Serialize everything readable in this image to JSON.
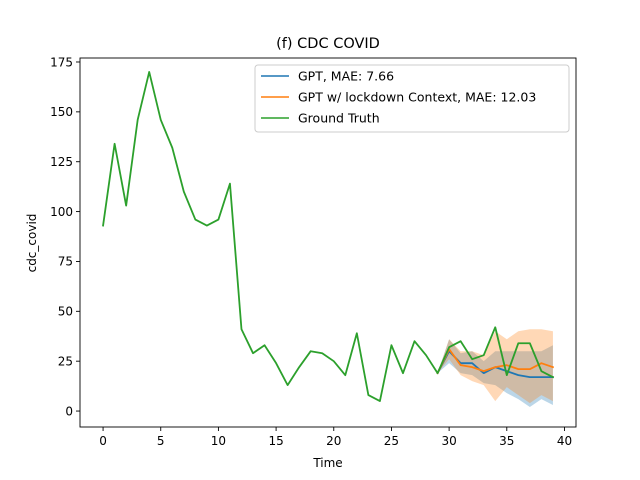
{
  "chart_data": {
    "type": "line",
    "title": "(f) CDC COVID",
    "xlabel": "Time",
    "ylabel": "cdc_covid",
    "xlim": [
      -2,
      41
    ],
    "ylim": [
      -8,
      177
    ],
    "xticks": [
      0,
      5,
      10,
      15,
      20,
      25,
      30,
      35,
      40
    ],
    "yticks": [
      0,
      25,
      50,
      75,
      100,
      125,
      150,
      175
    ],
    "grid": false,
    "legend_position": "upper right",
    "series": [
      {
        "name": "GPT, MAE: 7.66",
        "color": "#1f77b4",
        "x": [
          29,
          30,
          31,
          32,
          33,
          34,
          35,
          36,
          37,
          38,
          39
        ],
        "values": [
          19,
          30,
          24,
          24,
          19,
          22,
          20,
          18,
          17,
          17,
          17
        ],
        "band_lower": [
          19,
          24,
          19,
          18,
          14,
          13,
          9,
          6,
          2,
          6,
          3
        ],
        "band_upper": [
          19,
          36,
          29,
          30,
          25,
          30,
          30,
          30,
          30,
          30,
          33
        ]
      },
      {
        "name": "GPT w/ lockdown Context, MAE: 12.03",
        "color": "#ff7f0e",
        "x": [
          29,
          30,
          31,
          32,
          33,
          34,
          35,
          36,
          37,
          38,
          39
        ],
        "values": [
          19,
          31,
          23,
          22,
          20,
          22,
          23,
          21,
          21,
          24,
          22
        ],
        "band_lower": [
          19,
          26,
          18,
          15,
          13,
          5,
          12,
          8,
          4,
          8,
          5
        ],
        "band_upper": [
          19,
          36,
          30,
          30,
          28,
          40,
          36,
          40,
          41,
          41,
          40
        ]
      },
      {
        "name": "Ground Truth",
        "color": "#2ca02c",
        "x": [
          0,
          1,
          2,
          3,
          4,
          5,
          6,
          7,
          8,
          9,
          10,
          11,
          12,
          13,
          14,
          15,
          16,
          17,
          18,
          19,
          20,
          21,
          22,
          23,
          24,
          25,
          26,
          27,
          28,
          29,
          30,
          31,
          32,
          33,
          34,
          35,
          36,
          37,
          38,
          39
        ],
        "values": [
          93,
          134,
          103,
          146,
          170,
          146,
          132,
          110,
          96,
          93,
          96,
          114,
          41,
          29,
          33,
          24,
          13,
          22,
          30,
          29,
          25,
          18,
          39,
          8,
          5,
          33,
          19,
          35,
          28,
          19,
          32,
          35,
          26,
          28,
          42,
          18,
          34,
          34,
          20,
          17
        ]
      }
    ]
  }
}
